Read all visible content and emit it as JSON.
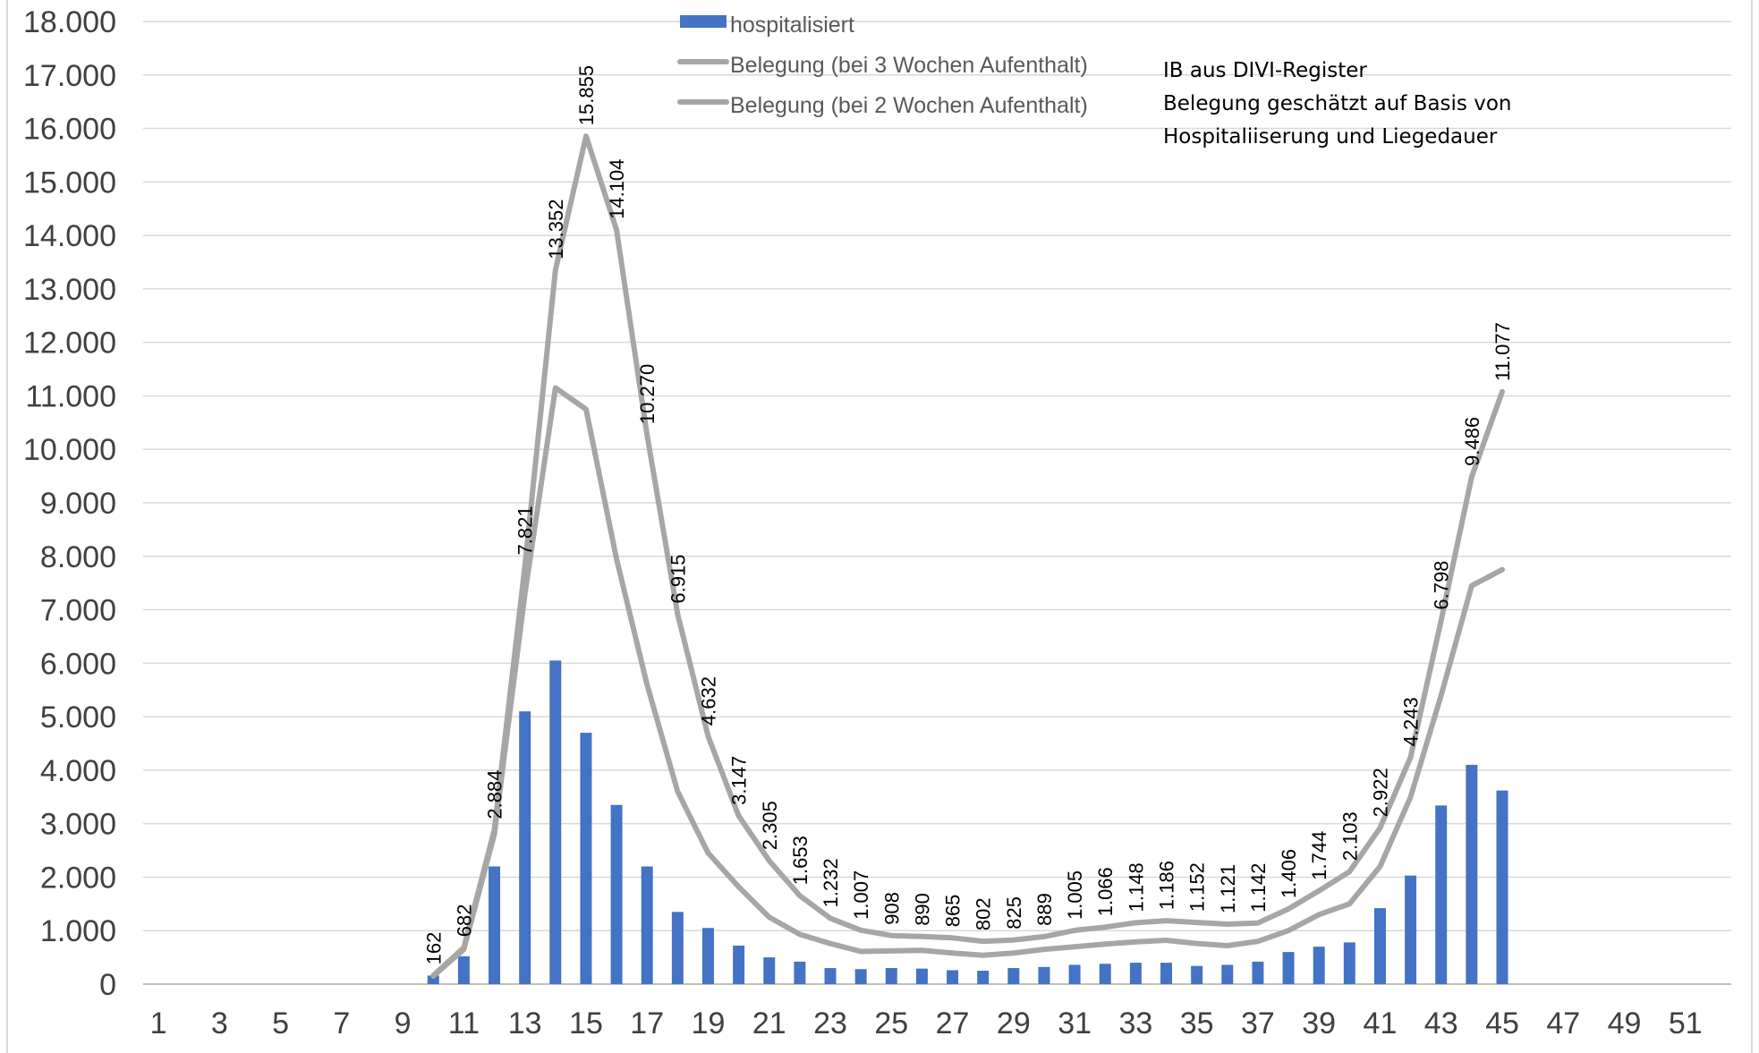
{
  "chart_data": {
    "type": "bar",
    "x": [
      1,
      2,
      3,
      4,
      5,
      6,
      7,
      8,
      9,
      10,
      11,
      12,
      13,
      14,
      15,
      16,
      17,
      18,
      19,
      20,
      21,
      22,
      23,
      24,
      25,
      26,
      27,
      28,
      29,
      30,
      31,
      32,
      33,
      34,
      35,
      36,
      37,
      38,
      39,
      40,
      41,
      42,
      43,
      44,
      45,
      46,
      47,
      48,
      49,
      50,
      51,
      52
    ],
    "x_tick_labels": [
      "1",
      "3",
      "5",
      "7",
      "9",
      "11",
      "13",
      "15",
      "17",
      "19",
      "21",
      "23",
      "25",
      "27",
      "29",
      "31",
      "33",
      "35",
      "37",
      "39",
      "41",
      "43",
      "45",
      "47",
      "49",
      "51"
    ],
    "y_tick_labels": [
      "0",
      "1.000",
      "2.000",
      "3.000",
      "4.000",
      "5.000",
      "6.000",
      "7.000",
      "8.000",
      "9.000",
      "10.000",
      "11.000",
      "12.000",
      "13.000",
      "14.000",
      "15.000",
      "16.000",
      "17.000",
      "18.000"
    ],
    "ylim": [
      0,
      18000
    ],
    "xlim": [
      1,
      52
    ],
    "grid": true,
    "legend_position": "top-center",
    "series": [
      {
        "name": "hospitalisiert",
        "kind": "bar",
        "color": "#4472c4",
        "x": [
          10,
          11,
          12,
          13,
          14,
          15,
          16,
          17,
          18,
          19,
          20,
          21,
          22,
          23,
          24,
          25,
          26,
          27,
          28,
          29,
          30,
          31,
          32,
          33,
          34,
          35,
          36,
          37,
          38,
          39,
          40,
          41,
          42,
          43,
          44,
          45
        ],
        "values": [
          160,
          520,
          2200,
          5100,
          6050,
          4700,
          3350,
          2200,
          1350,
          1050,
          720,
          500,
          420,
          300,
          280,
          300,
          290,
          260,
          250,
          300,
          320,
          360,
          380,
          400,
          400,
          340,
          360,
          420,
          600,
          700,
          780,
          1420,
          2030,
          3340,
          4100,
          3620
        ]
      },
      {
        "name": "Belegung (bei 3 Wochen Aufenthalt)",
        "kind": "line",
        "color": "#a6a6a6",
        "x": [
          10,
          11,
          12,
          13,
          14,
          15,
          16,
          17,
          18,
          19,
          20,
          21,
          22,
          23,
          24,
          25,
          26,
          27,
          28,
          29,
          30,
          31,
          32,
          33,
          34,
          35,
          36,
          37,
          38,
          39,
          40,
          41,
          42,
          43,
          44,
          45
        ],
        "values": [
          162,
          682,
          2884,
          7821,
          13352,
          15855,
          14104,
          10270,
          6915,
          4632,
          3147,
          2305,
          1653,
          1232,
          1007,
          908,
          890,
          865,
          802,
          825,
          889,
          1005,
          1066,
          1148,
          1186,
          1152,
          1121,
          1142,
          1406,
          1744,
          2103,
          2922,
          4243,
          6798,
          9486,
          11077
        ],
        "labels": [
          "162",
          "682",
          "2.884",
          "7.821",
          "13.352",
          "15.855",
          "14.104",
          "10.270",
          "6.915",
          "4.632",
          "3.147",
          "2.305",
          "1.653",
          "1.232",
          "1.007",
          "908",
          "890",
          "865",
          "802",
          "825",
          "889",
          "1.005",
          "1.066",
          "1.148",
          "1.186",
          "1.152",
          "1.121",
          "1.142",
          "1.406",
          "1.744",
          "2.103",
          "2.922",
          "4.243",
          "6.798",
          "9.486",
          "11.077"
        ]
      },
      {
        "name": "Belegung (bei 2 Wochen Aufenthalt)",
        "kind": "line",
        "color": "#a6a6a6",
        "x": [
          10,
          11,
          12,
          13,
          14,
          15,
          16,
          17,
          18,
          19,
          20,
          21,
          22,
          23,
          24,
          25,
          26,
          27,
          28,
          29,
          30,
          31,
          32,
          33,
          34,
          35,
          36,
          37,
          38,
          39,
          40,
          41,
          42,
          43,
          44,
          45
        ],
        "values": [
          150,
          650,
          2800,
          7300,
          11150,
          10750,
          7950,
          5600,
          3600,
          2450,
          1820,
          1250,
          930,
          760,
          610,
          620,
          630,
          580,
          540,
          580,
          650,
          700,
          750,
          790,
          820,
          760,
          720,
          800,
          1000,
          1300,
          1500,
          2200,
          3500,
          5400,
          7450,
          7750
        ]
      }
    ],
    "annotation": [
      "IB aus DIVI-Register",
      "Belegung geschätzt auf Basis von",
      "Hospitaliiserung und Liegedauer"
    ]
  }
}
